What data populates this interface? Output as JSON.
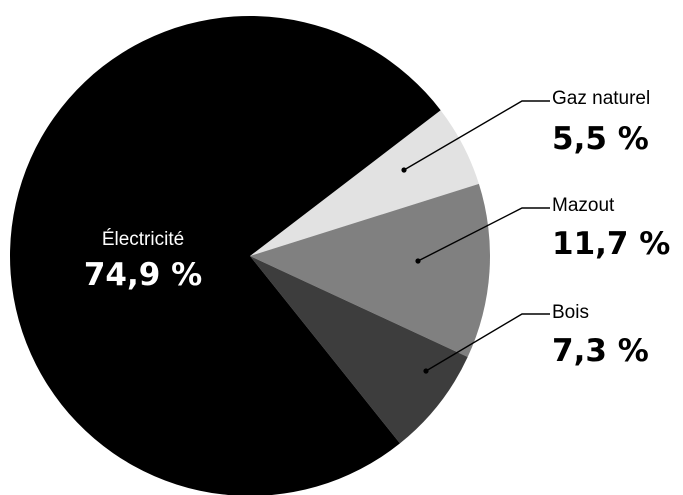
{
  "chart_data": {
    "type": "pie",
    "title": "",
    "start": "clockwise",
    "slices": [
      {
        "label": "Gaz naturel",
        "value": 5.5,
        "value_label": "5,5 %",
        "color": "#e2e2e2",
        "text_color": "#000000",
        "label_style": "callout-right"
      },
      {
        "label": "Mazout",
        "value": 11.7,
        "value_label": "11,7 %",
        "color": "#808080",
        "text_color": "#000000",
        "label_style": "callout-right"
      },
      {
        "label": "Bois",
        "value": 7.3,
        "value_label": "7,3 %",
        "color": "#3d3d3d",
        "text_color": "#000000",
        "label_style": "callout-right"
      },
      {
        "label": "Électricité",
        "value": 74.9,
        "value_label": "74,9 %",
        "color": "#000000",
        "text_color": "#ffffff",
        "label_style": "inside"
      }
    ]
  }
}
